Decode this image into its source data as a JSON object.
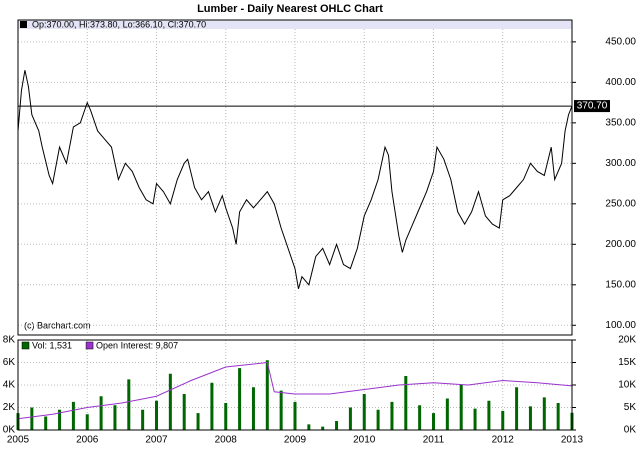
{
  "title": "Lumber - Daily Nearest OHLC Chart",
  "chart_data": [
    {
      "type": "line",
      "header": "Op:370.00, Hi:373.80, Lo:366.10, Cl:370.70",
      "watermark": "(c) Barchart.com",
      "color": "#000000",
      "last_label": {
        "value": 370.7,
        "label": "370.70"
      },
      "x": [
        2005,
        2005.05,
        2005.1,
        2005.15,
        2005.2,
        2005.3,
        2005.35,
        2005.45,
        2005.5,
        2005.6,
        2005.7,
        2005.8,
        2005.9,
        2006,
        2006.05,
        2006.15,
        2006.25,
        2006.35,
        2006.45,
        2006.55,
        2006.65,
        2006.75,
        2006.85,
        2006.95,
        2007,
        2007.1,
        2007.2,
        2007.3,
        2007.4,
        2007.45,
        2007.55,
        2007.65,
        2007.75,
        2007.85,
        2007.95,
        2008,
        2008.1,
        2008.15,
        2008.2,
        2008.3,
        2008.4,
        2008.5,
        2008.6,
        2008.7,
        2008.8,
        2008.9,
        2009,
        2009.05,
        2009.1,
        2009.2,
        2009.3,
        2009.4,
        2009.5,
        2009.6,
        2009.7,
        2009.8,
        2009.9,
        2010,
        2010.1,
        2010.2,
        2010.3,
        2010.35,
        2010.4,
        2010.5,
        2010.55,
        2010.6,
        2010.7,
        2010.8,
        2010.9,
        2011,
        2011.05,
        2011.15,
        2011.25,
        2011.35,
        2011.45,
        2011.55,
        2011.65,
        2011.75,
        2011.85,
        2011.95,
        2012,
        2012.1,
        2012.2,
        2012.3,
        2012.4,
        2012.5,
        2012.6,
        2012.7,
        2012.75,
        2012.85,
        2012.9,
        2012.95,
        2013
      ],
      "values": [
        340,
        390,
        415,
        395,
        360,
        340,
        320,
        285,
        275,
        320,
        300,
        345,
        350,
        375,
        365,
        340,
        330,
        320,
        280,
        300,
        290,
        270,
        255,
        250,
        275,
        265,
        250,
        280,
        300,
        305,
        270,
        255,
        265,
        240,
        260,
        245,
        220,
        200,
        240,
        255,
        245,
        255,
        265,
        250,
        220,
        195,
        170,
        145,
        160,
        150,
        185,
        195,
        175,
        200,
        175,
        170,
        195,
        235,
        255,
        280,
        320,
        310,
        265,
        210,
        190,
        205,
        225,
        245,
        265,
        290,
        320,
        305,
        280,
        240,
        225,
        240,
        265,
        235,
        225,
        220,
        255,
        260,
        270,
        280,
        300,
        290,
        285,
        320,
        280,
        300,
        340,
        360,
        370.7
      ],
      "xlim": [
        2005,
        2013
      ],
      "xticks": [
        2005,
        2006,
        2007,
        2008,
        2009,
        2010,
        2011,
        2012,
        2013
      ],
      "ylim": [
        88,
        477
      ],
      "yticks": [
        {
          "value": 100,
          "label": "100.00"
        },
        {
          "value": 150,
          "label": "150.00"
        },
        {
          "value": 200,
          "label": "200.00"
        },
        {
          "value": 250,
          "label": "250.00"
        },
        {
          "value": 300,
          "label": "300.00"
        },
        {
          "value": 350,
          "label": "350.00"
        },
        {
          "value": 400,
          "label": "400.00"
        },
        {
          "value": 450,
          "label": "450.00"
        }
      ],
      "grid": true
    },
    {
      "type": "bar",
      "xlim": [
        2005,
        2013
      ],
      "xticks": [
        2005,
        2006,
        2007,
        2008,
        2009,
        2010,
        2011,
        2012,
        2013
      ],
      "ylim": [
        0,
        8000
      ],
      "yticks": [
        {
          "value": 0,
          "label": "0K"
        },
        {
          "value": 2000,
          "label": "2K"
        },
        {
          "value": 4000,
          "label": "4K"
        },
        {
          "value": 6000,
          "label": "6K"
        },
        {
          "value": 8000,
          "label": "8K"
        }
      ],
      "y2lim": [
        0,
        20000
      ],
      "y2ticks": [
        {
          "value": 0,
          "label": "0K"
        },
        {
          "value": 5000,
          "label": "5K"
        },
        {
          "value": 10000,
          "label": "10K"
        },
        {
          "value": 15000,
          "label": "15K"
        },
        {
          "value": 20000,
          "label": "20K"
        }
      ],
      "grid": true,
      "series": [
        {
          "name": "Vol: 1,531",
          "color": "#006600",
          "x": [
            2005,
            2005.2,
            2005.4,
            2005.6,
            2005.8,
            2006,
            2006.2,
            2006.4,
            2006.6,
            2006.8,
            2007,
            2007.2,
            2007.4,
            2007.6,
            2007.8,
            2008,
            2008.2,
            2008.4,
            2008.6,
            2008.8,
            2009,
            2009.2,
            2009.4,
            2009.6,
            2009.8,
            2010,
            2010.2,
            2010.4,
            2010.6,
            2010.8,
            2011,
            2011.2,
            2011.4,
            2011.6,
            2011.8,
            2012,
            2012.2,
            2012.4,
            2012.6,
            2012.8,
            2013
          ],
          "values": [
            1500,
            2000,
            1200,
            1800,
            2500,
            1400,
            3000,
            2200,
            4500,
            1800,
            2600,
            5000,
            3200,
            1500,
            4200,
            2400,
            5500,
            3800,
            6200,
            3500,
            2500,
            500,
            300,
            800,
            2000,
            3200,
            1800,
            2500,
            4800,
            2200,
            1500,
            2800,
            4000,
            1900,
            2600,
            1700,
            3800,
            2100,
            2900,
            2400,
            1531
          ]
        },
        {
          "name": "Open Interest: 9,807",
          "color": "#9933cc",
          "axis": "y2",
          "x": [
            2005,
            2005.5,
            2006,
            2006.5,
            2007,
            2007.5,
            2008,
            2008.6,
            2008.7,
            2009,
            2009.5,
            2010,
            2010.5,
            2011,
            2011.5,
            2012,
            2012.5,
            2013
          ],
          "values": [
            2500,
            3500,
            5000,
            6000,
            7500,
            11000,
            14000,
            15000,
            8500,
            8000,
            8000,
            9000,
            10000,
            10500,
            10000,
            11000,
            10500,
            9807
          ]
        }
      ]
    }
  ]
}
